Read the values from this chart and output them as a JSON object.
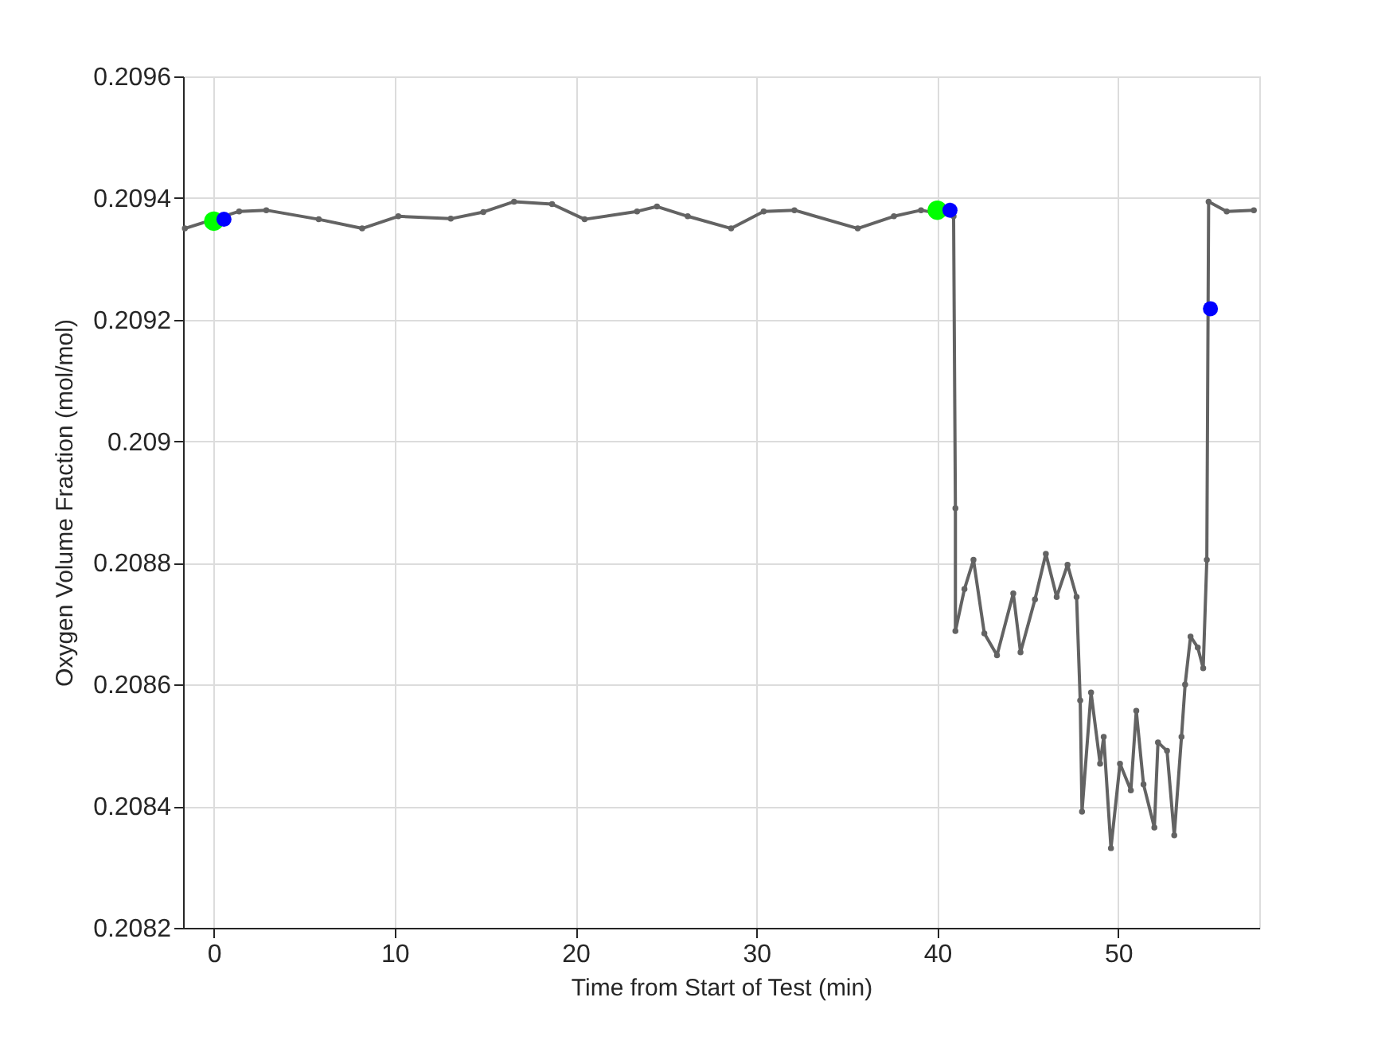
{
  "chart_data": {
    "type": "line",
    "xlabel": "Time from Start of Test (min)",
    "ylabel": "Oxygen Volume Fraction (mol/mol)",
    "xlim": [
      -1.7,
      57.8
    ],
    "xticks": [
      0,
      10,
      20,
      30,
      40,
      50
    ],
    "ylim": [
      0.2082,
      0.2096
    ],
    "yticks": [
      0.2082,
      0.2084,
      0.2086,
      0.2088,
      0.209,
      0.2092,
      0.2094,
      0.2096
    ],
    "grid": true,
    "marker": "circle",
    "series": [
      {
        "color": "#636363",
        "x": [
          -1.6,
          1.4,
          2.9,
          5.8,
          8.2,
          10.2,
          13.1,
          14.9,
          16.6,
          18.7,
          20.5,
          23.4,
          24.5,
          26.2,
          28.6,
          30.4,
          32.1,
          35.6,
          37.6,
          39.1,
          40.9,
          41.0,
          41.0,
          41.5,
          42.0,
          42.6,
          43.3,
          44.2,
          44.6,
          45.4,
          46.0,
          46.6,
          47.2,
          47.7,
          47.9,
          48.0,
          48.5,
          49.0,
          49.2,
          49.6,
          50.1,
          50.7,
          51.0,
          51.4,
          52.0,
          52.2,
          52.7,
          53.1,
          53.5,
          53.7,
          54.0,
          54.4,
          54.7,
          54.9,
          55.0,
          56.0,
          57.5
        ],
        "values": [
          0.20935,
          0.209378,
          0.20938,
          0.209365,
          0.20935,
          0.20937,
          0.209366,
          0.209377,
          0.209394,
          0.20939,
          0.209365,
          0.209378,
          0.209386,
          0.20937,
          0.20935,
          0.209378,
          0.20938,
          0.20935,
          0.20937,
          0.20938,
          0.20937,
          0.20889,
          0.208688,
          0.208757,
          0.208805,
          0.208684,
          0.208648,
          0.20875,
          0.208653,
          0.20874,
          0.208815,
          0.208744,
          0.208797,
          0.208744,
          0.208574,
          0.208391,
          0.208587,
          0.20847,
          0.208514,
          0.208331,
          0.20847,
          0.208426,
          0.208557,
          0.208436,
          0.208365,
          0.208505,
          0.208491,
          0.208352,
          0.208514,
          0.2086,
          0.208679,
          0.208661,
          0.208627,
          0.208805,
          0.209394,
          0.209378,
          0.20938
        ]
      },
      {
        "type": "scatter",
        "color": "#00ff00",
        "x": [
          0,
          40.0
        ],
        "values": [
          0.209362,
          0.20938
        ]
      },
      {
        "type": "scatter",
        "color": "#0000ff",
        "x": [
          0.56,
          40.7,
          55.1
        ],
        "values": [
          0.209365,
          0.20938,
          0.209218
        ]
      }
    ]
  }
}
